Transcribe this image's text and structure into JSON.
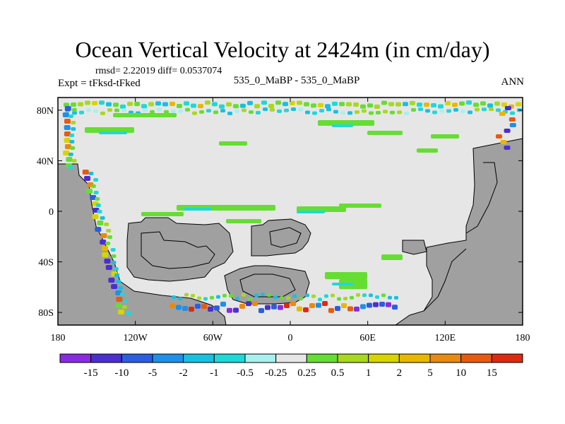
{
  "chart_data": {
    "type": "heatmap",
    "title": "Ocean Vertical Velocity at 2424m (in cm/day)",
    "stats_text": "rmsd= 2.22019 diff= 0.0537074",
    "left_label": "Expt = tFksd-tFked",
    "center_label": "535_0_MaBP - 535_0_MaBP",
    "right_label": "ANN",
    "x_ticks": [
      "180",
      "120W",
      "60W",
      "0",
      "60E",
      "120E",
      "180"
    ],
    "x_tick_values": [
      -180,
      -120,
      -60,
      0,
      60,
      120,
      180
    ],
    "y_ticks": [
      "80N",
      "40N",
      "0",
      "40S",
      "80S"
    ],
    "y_tick_values": [
      80,
      40,
      0,
      -40,
      -80
    ],
    "xlim": [
      -180,
      180
    ],
    "ylim": [
      -90,
      90
    ],
    "colorbar": {
      "labels": [
        "-15",
        "-10",
        "-5",
        "-2",
        "-1",
        "-0.5",
        "-0.25",
        "0.25",
        "0.5",
        "1",
        "2",
        "5",
        "10",
        "15"
      ],
      "colors": [
        "#8a2be2",
        "#4b2fd0",
        "#2b5ee0",
        "#1e90e8",
        "#18c0e0",
        "#1fd8d8",
        "#a8f0f0",
        "#e6e6e6",
        "#66dd33",
        "#a8d820",
        "#d8d400",
        "#e8b800",
        "#e88a10",
        "#e85a10",
        "#dd2a10"
      ]
    },
    "land_color": "#a0a0a0",
    "ocean_near_zero_color": "#e6e6e6"
  }
}
